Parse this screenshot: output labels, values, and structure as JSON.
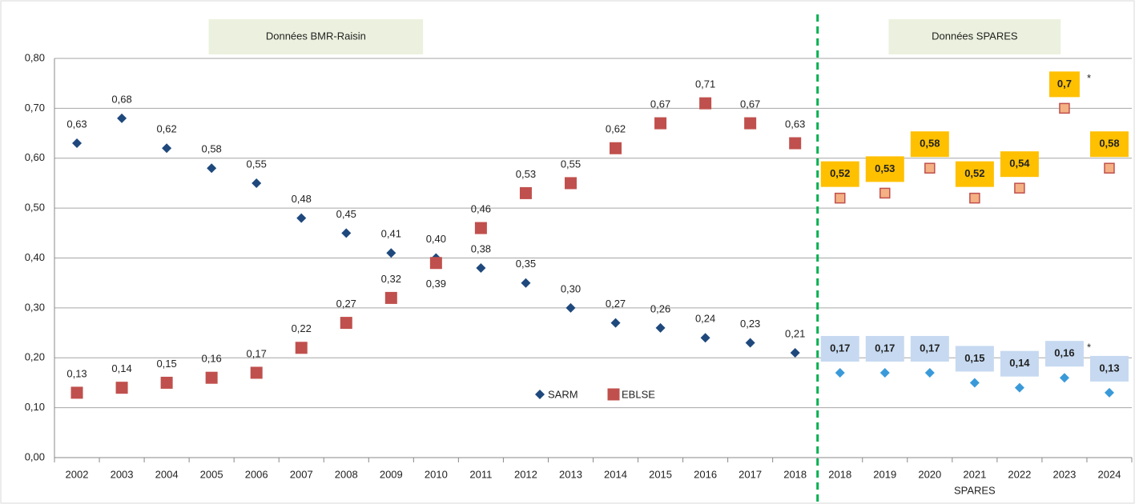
{
  "chart_data": {
    "type": "scatter",
    "ylim": [
      0,
      0.8
    ],
    "yticks": [
      {
        "value": 0,
        "label": "0,00"
      },
      {
        "value": 0.1,
        "label": "0,10"
      },
      {
        "value": 0.2,
        "label": "0,20"
      },
      {
        "value": 0.3,
        "label": "0,30"
      },
      {
        "value": 0.4,
        "label": "0,40"
      },
      {
        "value": 0.5,
        "label": "0,50"
      },
      {
        "value": 0.6,
        "label": "0,60"
      },
      {
        "value": 0.7,
        "label": "0,70"
      },
      {
        "value": 0.8,
        "label": "0,80"
      }
    ],
    "grid": true,
    "sections": [
      {
        "title": "Données BMR-Raisin",
        "categories": [
          "2002",
          "2003",
          "2004",
          "2005",
          "2006",
          "2007",
          "2008",
          "2009",
          "2010",
          "2011",
          "2012",
          "2013",
          "2014",
          "2015",
          "2016",
          "2017",
          "2018"
        ],
        "series": [
          {
            "name": "SARM",
            "marker": "diamond",
            "color": "#1f497d",
            "values": [
              0.63,
              0.68,
              0.62,
              0.58,
              0.55,
              0.48,
              0.45,
              0.41,
              0.4,
              0.38,
              0.35,
              0.3,
              0.27,
              0.26,
              0.24,
              0.23,
              0.21
            ],
            "value_labels": [
              "0,63",
              "0,68",
              "0,62",
              "0,58",
              "0,55",
              "0,48",
              "0,45",
              "0,41",
              "0,40",
              "0,38",
              "0,35",
              "0,30",
              "0,27",
              "0,26",
              "0,24",
              "0,23",
              "0,21"
            ]
          },
          {
            "name": "EBLSE",
            "marker": "square",
            "color": "#c0504d",
            "values": [
              0.13,
              0.14,
              0.15,
              0.16,
              0.17,
              0.22,
              0.27,
              0.32,
              0.39,
              0.46,
              0.53,
              0.55,
              0.62,
              0.67,
              0.71,
              0.67,
              0.63
            ],
            "value_labels": [
              "0,13",
              "0,14",
              "0,15",
              "0,16",
              "0,17",
              "0,22",
              "0,27",
              "0,32",
              "0,39",
              "0,46",
              "0,53",
              "0,55",
              "0,62",
              "0,67",
              "0,71",
              "0,67",
              "0,63"
            ]
          }
        ]
      },
      {
        "title": "Données SPARES",
        "subtitle": "SPARES",
        "categories": [
          "2018",
          "2019",
          "2020",
          "2021",
          "2022",
          "2023",
          "2024"
        ],
        "series": [
          {
            "marker": "diamond",
            "color": "#3a9ad9",
            "label_bg": "#c6d9f1",
            "values": [
              0.17,
              0.17,
              0.17,
              0.15,
              0.14,
              0.16,
              0.13
            ],
            "value_labels": [
              "0,17",
              "0,17",
              "0,17",
              "0,15",
              "0,14",
              "0,16",
              "0,13"
            ],
            "annotation": {
              "text": "*",
              "category": "2023"
            }
          },
          {
            "marker": "square",
            "color": "#f4b183",
            "stroke": "#c0504d",
            "label_bg": "#ffc000",
            "values": [
              0.52,
              0.53,
              0.58,
              0.52,
              0.54,
              0.7,
              0.58
            ],
            "value_labels": [
              "0,52",
              "0,53",
              "0,58",
              "0,52",
              "0,54",
              "0,7",
              "0,58"
            ],
            "annotation": {
              "text": "*",
              "category": "2023"
            }
          }
        ]
      }
    ]
  }
}
